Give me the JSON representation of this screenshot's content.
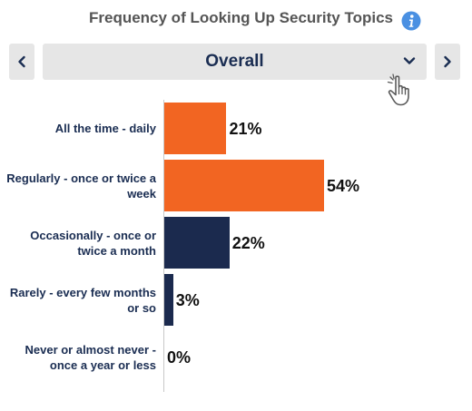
{
  "header": {
    "title": "Frequency of Looking Up Security Topics",
    "info_icon": "info-icon",
    "colors": {
      "title": "#555555",
      "info": "#4a90e2"
    }
  },
  "selector": {
    "value": "Overall",
    "prev_icon": "chevron-left-icon",
    "next_icon": "chevron-right-icon",
    "dropdown_icon": "chevron-down-icon",
    "cursor_icon": "hand-pointer-icon",
    "color": "#1a2d52"
  },
  "chart_data": {
    "type": "bar",
    "orientation": "horizontal",
    "title": "",
    "xlabel": "",
    "ylabel": "",
    "xlim": [
      0,
      54
    ],
    "grid": false,
    "categories": [
      "All the time - daily",
      "Regularly - once or twice a week",
      "Occasionally - once or twice a month",
      "Rarely - every few months or so",
      "Never or almost never - once a year or less"
    ],
    "values": [
      21,
      54,
      22,
      3,
      0
    ],
    "value_labels": [
      "21%",
      "54%",
      "22%",
      "3%",
      "0%"
    ],
    "colors": [
      "#f26522",
      "#f26522",
      "#1b2a4e",
      "#1b2a4e",
      "#1b2a4e"
    ]
  }
}
